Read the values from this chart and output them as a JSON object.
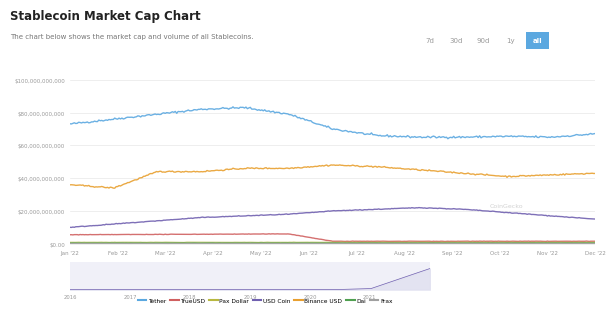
{
  "title": "Stablecoin Market Cap Chart",
  "subtitle": "The chart below shows the market cap and volume of all Stablecoins.",
  "buttons": [
    "7d",
    "30d",
    "90d",
    "1y",
    "all"
  ],
  "active_button": "all",
  "yticks": [
    0,
    20000000000,
    40000000000,
    60000000000,
    80000000000,
    100000000000
  ],
  "ytick_labels": [
    "$0.00",
    "$20,000,000,000",
    "$40,000,000,000",
    "$60,000,000,000",
    "$80,000,000,000",
    "$100,000,000,000"
  ],
  "xtick_labels": [
    "Jan '22",
    "Feb '22",
    "Mar '22",
    "Apr '22",
    "May '22",
    "Jun '22",
    "Jul '22",
    "Aug '22",
    "Sep '22",
    "Oct '22",
    "Nov '22",
    "Dec '22"
  ],
  "bg_color": "#ffffff",
  "plot_bg": "#ffffff",
  "grid_color": "#e8e8e8",
  "legend": [
    "Tether",
    "TrueUSD",
    "Pax Dollar",
    "USD Coin",
    "Binance USD",
    "Dai",
    "Frax"
  ],
  "colors": {
    "Tether": "#5ba8e0",
    "USD Coin": "#7060b0",
    "Binance USD": "#e8a030",
    "TrueUSD": "#d06060",
    "Pax Dollar": "#b8b840",
    "Dai": "#50a050",
    "Frax": "#a0a0a0"
  },
  "watermark": "CoinGecko",
  "bottom_area_color": "#f0f0f8",
  "bottom_line_color": "#7060b0",
  "bottom_xticks": [
    "2016",
    "2017",
    "2018",
    "2019",
    "2020",
    "2021"
  ],
  "logo_watermark": true
}
